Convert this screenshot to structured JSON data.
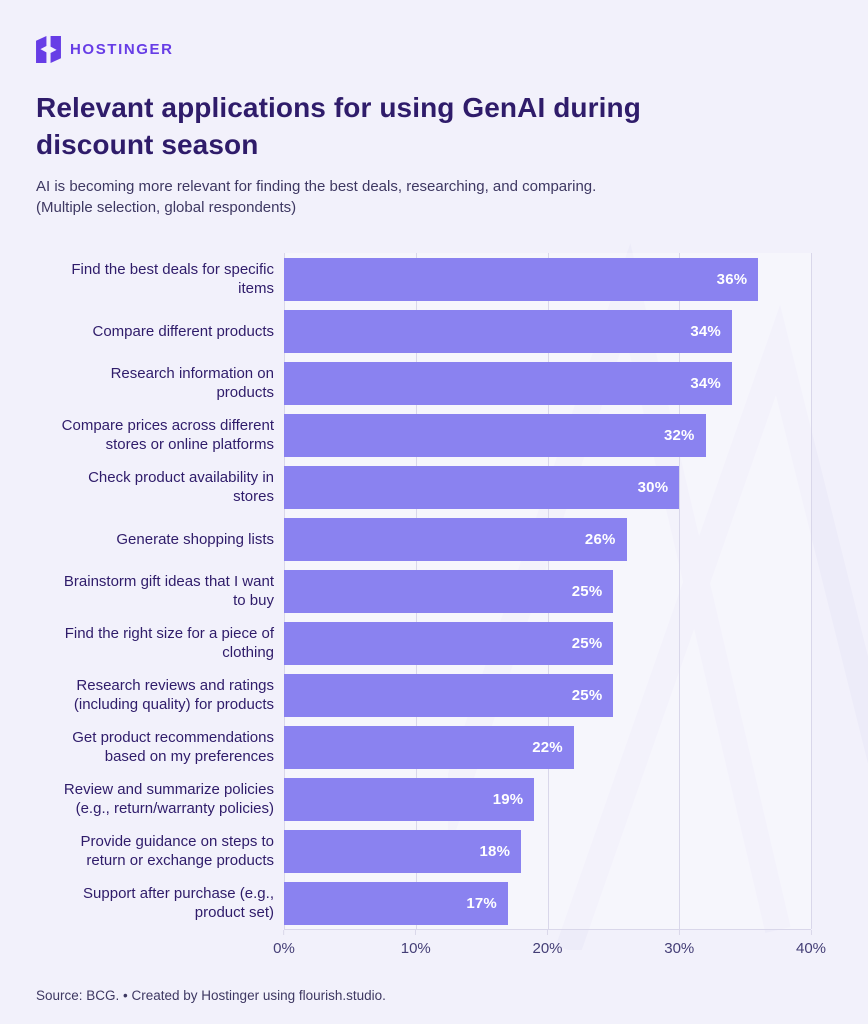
{
  "theme": {
    "background": "#F2F1FB",
    "brand": "#673DE6",
    "title_color": "#2F1C6A",
    "text_color": "#3E3862",
    "bar_color": "#8A82F0",
    "grid_color": "#D9D7EA",
    "axis_label_color": "#443E76",
    "value_color": "#FFFFFF",
    "plot_bg": "rgba(255,255,255,0.35)"
  },
  "logo": {
    "text": "HOSTINGER"
  },
  "header": {
    "title": "Relevant applications for using GenAI during\ndiscount season",
    "subtitle": "AI is becoming more relevant for finding the best deals, researching, and comparing.\n(Multiple selection, global respondents)"
  },
  "chart_data": {
    "type": "bar",
    "orientation": "horizontal",
    "title": "Relevant applications for using GenAI during discount season",
    "categories": [
      [
        "Find the best deals for specific",
        "items"
      ],
      [
        "Compare different products"
      ],
      [
        "Research information on",
        "products"
      ],
      [
        "Compare prices across different",
        "stores or online platforms"
      ],
      [
        "Check product availability in",
        "stores"
      ],
      [
        "Generate shopping lists"
      ],
      [
        "Brainstorm gift ideas that I want",
        "to buy"
      ],
      [
        "Find the right size for a piece of",
        "clothing"
      ],
      [
        "Research reviews and ratings",
        "(including quality) for products"
      ],
      [
        "Get product recommendations",
        "based on my preferences"
      ],
      [
        "Review and summarize policies",
        "(e.g., return/warranty policies)"
      ],
      [
        "Provide guidance on steps to",
        "return or exchange products"
      ],
      [
        "Support after purchase (e.g.,",
        "product set)"
      ]
    ],
    "values": [
      36,
      34,
      34,
      32,
      30,
      26,
      25,
      25,
      25,
      22,
      19,
      18,
      17
    ],
    "value_suffix": "%",
    "xlim": [
      0,
      40
    ],
    "x_ticks": [
      0,
      10,
      20,
      30,
      40
    ],
    "x_tick_labels": [
      "0%",
      "10%",
      "20%",
      "30%",
      "40%"
    ],
    "grid": "vertical",
    "legend": "none",
    "xlabel": "",
    "ylabel": ""
  },
  "footer": {
    "text": "Source: BCG. • Created by Hostinger using flourish.studio."
  }
}
